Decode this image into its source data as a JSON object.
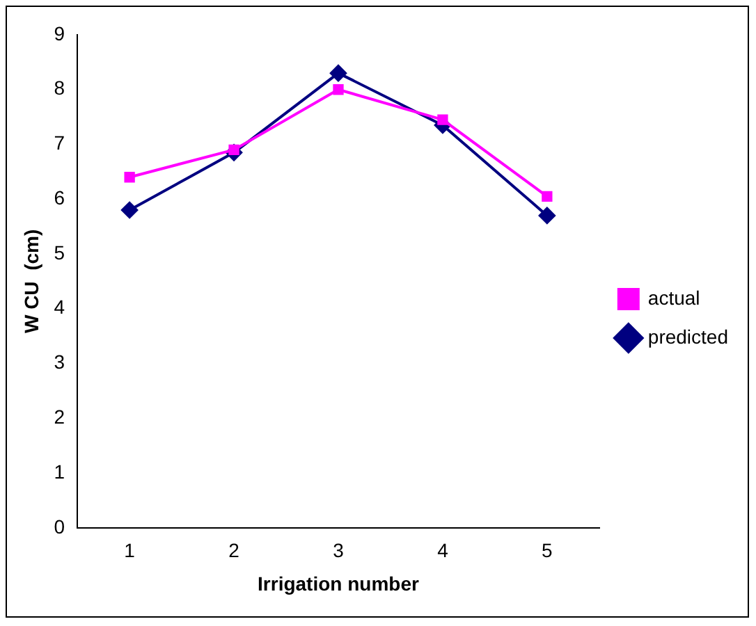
{
  "chart_data": {
    "type": "line",
    "xlabel": "Irrigation number",
    "ylabel": "W CU  (cm)",
    "categories": [
      "1",
      "2",
      "3",
      "4",
      "5"
    ],
    "series": [
      {
        "name": "predicted",
        "color": "#000080",
        "marker": "diamond",
        "values": [
          5.8,
          6.85,
          8.3,
          7.35,
          5.7
        ]
      },
      {
        "name": "actual",
        "color": "#ff00ff",
        "marker": "square",
        "values": [
          6.4,
          6.9,
          8.0,
          7.45,
          6.05
        ]
      }
    ],
    "ylim": [
      0,
      9
    ],
    "yticks": [
      0,
      1,
      2,
      3,
      4,
      5,
      6,
      7,
      8,
      9
    ],
    "grid": false,
    "legend": "right",
    "line_style": "solid"
  }
}
